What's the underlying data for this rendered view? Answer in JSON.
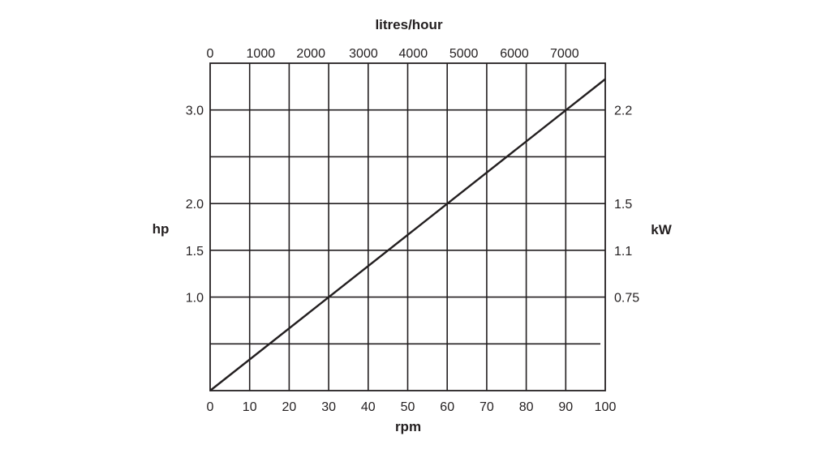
{
  "chart_data": {
    "type": "line",
    "x_axis_bottom": {
      "label": "rpm",
      "range": [
        0,
        100
      ],
      "ticks": [
        0,
        10,
        20,
        30,
        40,
        50,
        60,
        70,
        80,
        90,
        100
      ]
    },
    "x_axis_top": {
      "label": "litres/hour",
      "ticks": [
        {
          "label": "0",
          "rpm": 0
        },
        {
          "label": "1000",
          "rpm": 12.8
        },
        {
          "label": "2000",
          "rpm": 25.5
        },
        {
          "label": "3000",
          "rpm": 38.8
        },
        {
          "label": "4000",
          "rpm": 51.4
        },
        {
          "label": "5000",
          "rpm": 64.2
        },
        {
          "label": "6000",
          "rpm": 77.0
        },
        {
          "label": "7000",
          "rpm": 89.7
        }
      ]
    },
    "y_axis_left": {
      "label": "hp",
      "ticks": [
        {
          "label": "1.0",
          "hp": 1.0
        },
        {
          "label": "1.5",
          "hp": 1.5
        },
        {
          "label": "2.0",
          "hp": 2.0
        },
        {
          "label": "3.0",
          "hp": 3.0
        }
      ],
      "gridlines_hp": [
        0.5,
        1.0,
        1.5,
        2.0,
        2.5,
        3.0
      ],
      "range": [
        0,
        3.5
      ]
    },
    "y_axis_right": {
      "label": "kW",
      "ticks": [
        {
          "label": "0.75",
          "hp": 1.0
        },
        {
          "label": "1.1",
          "hp": 1.5
        },
        {
          "label": "1.5",
          "hp": 2.0
        },
        {
          "label": "2.2",
          "hp": 3.0
        }
      ]
    },
    "series": [
      {
        "x": [
          0,
          100
        ],
        "y": [
          0,
          3.33
        ]
      }
    ],
    "grid": true
  }
}
